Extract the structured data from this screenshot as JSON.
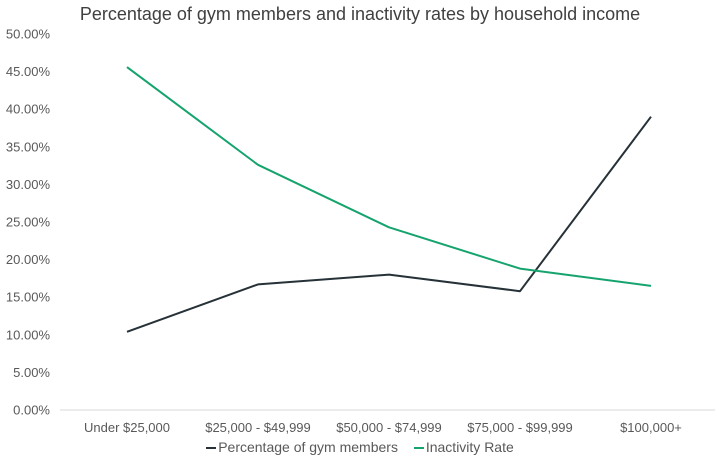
{
  "chart_data": {
    "type": "line",
    "title": "Percentage of gym members and inactivity rates by household income",
    "categories": [
      "Under $25,000",
      "$25,000 - $49,999",
      "$50,000 - $74,999",
      "$75,000 - $99,999",
      "$100,000+"
    ],
    "series": [
      {
        "name": "Percentage of gym members",
        "color": "#263238",
        "values": [
          10.4,
          16.7,
          18.0,
          15.8,
          39.0
        ]
      },
      {
        "name": "Inactivity Rate",
        "color": "#15a36e",
        "values": [
          45.6,
          32.6,
          24.3,
          18.8,
          16.5
        ]
      }
    ],
    "y_ticks": [
      "0.00%",
      "5.00%",
      "10.00%",
      "15.00%",
      "20.00%",
      "25.00%",
      "30.00%",
      "35.00%",
      "40.00%",
      "45.00%",
      "50.00%"
    ],
    "ylim": [
      0,
      50
    ],
    "grid": false,
    "legend": "bottom"
  }
}
